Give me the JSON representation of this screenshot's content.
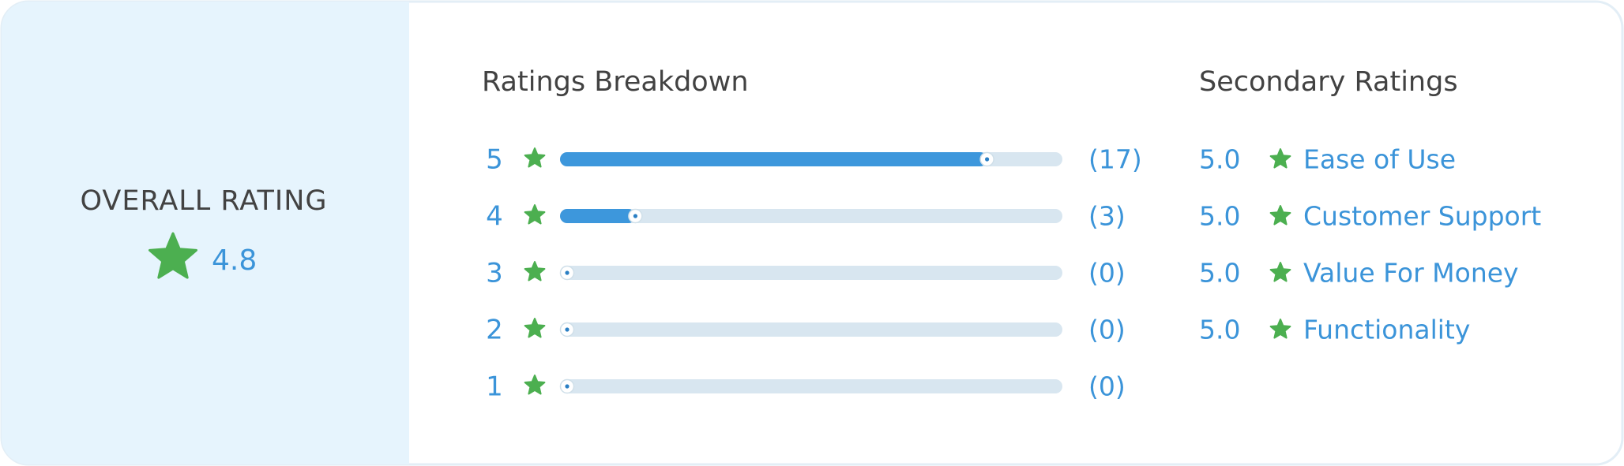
{
  "overall": {
    "label": "OVERALL RATING",
    "value": 4.8
  },
  "breakdown": {
    "title": "Ratings Breakdown",
    "rows": [
      {
        "stars": 5,
        "count": 17,
        "count_label": "(17)"
      },
      {
        "stars": 4,
        "count": 3,
        "count_label": "(3)"
      },
      {
        "stars": 3,
        "count": 0,
        "count_label": "(0)"
      },
      {
        "stars": 2,
        "count": 0,
        "count_label": "(0)"
      },
      {
        "stars": 1,
        "count": 0,
        "count_label": "(0)"
      }
    ]
  },
  "secondary": {
    "title": "Secondary Ratings",
    "rows": [
      {
        "rating": "5.0",
        "label": "Ease of Use"
      },
      {
        "rating": "5.0",
        "label": "Customer Support"
      },
      {
        "rating": "5.0",
        "label": "Value For Money"
      },
      {
        "rating": "5.0",
        "label": "Functionality"
      }
    ]
  }
}
